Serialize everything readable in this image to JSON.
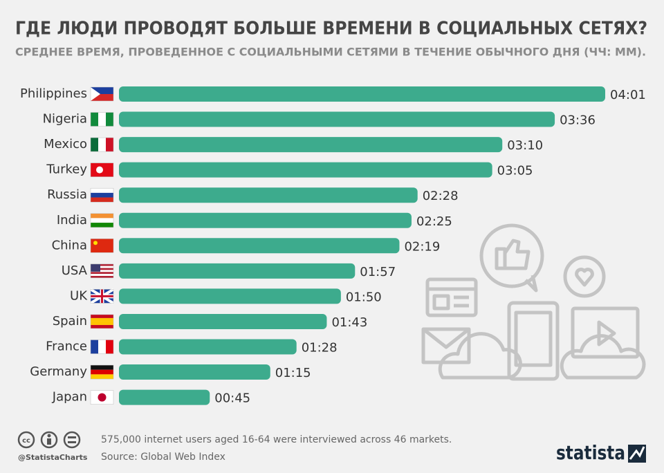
{
  "chart_data": {
    "type": "bar",
    "title": "ГДЕ ЛЮДИ ПРОВОДЯТ БОЛЬШЕ ВРЕМЕНИ В СОЦИАЛЬНЫХ СЕТЯХ?",
    "subtitle": "СРЕДНЕЕ ВРЕМЯ, ПРОВЕДЕННОЕ С СОЦИАЛЬНЫМИ СЕТЯМИ В ТЕЧЕНИЕ ОБЫЧНОГО ДНЯ (ЧЧ: ММ).",
    "categories": [
      "Philippines",
      "Nigeria",
      "Mexico",
      "Turkey",
      "Russia",
      "India",
      "China",
      "USA",
      "UK",
      "Spain",
      "France",
      "Germany",
      "Japan"
    ],
    "values": [
      241,
      216,
      190,
      185,
      148,
      145,
      139,
      117,
      110,
      103,
      88,
      75,
      45
    ],
    "value_labels": [
      "04:01",
      "03:36",
      "03:10",
      "03:05",
      "02:28",
      "02:25",
      "02:19",
      "01:57",
      "01:50",
      "01:43",
      "01:28",
      "01:15",
      "00:45"
    ],
    "color": "#3dab8d",
    "note": "575,000 internet users aged 16-64 were interviewed across 46 markets.",
    "source": "Source: Global Web Index",
    "handle": "@StatistaCharts",
    "brand": "statista"
  }
}
